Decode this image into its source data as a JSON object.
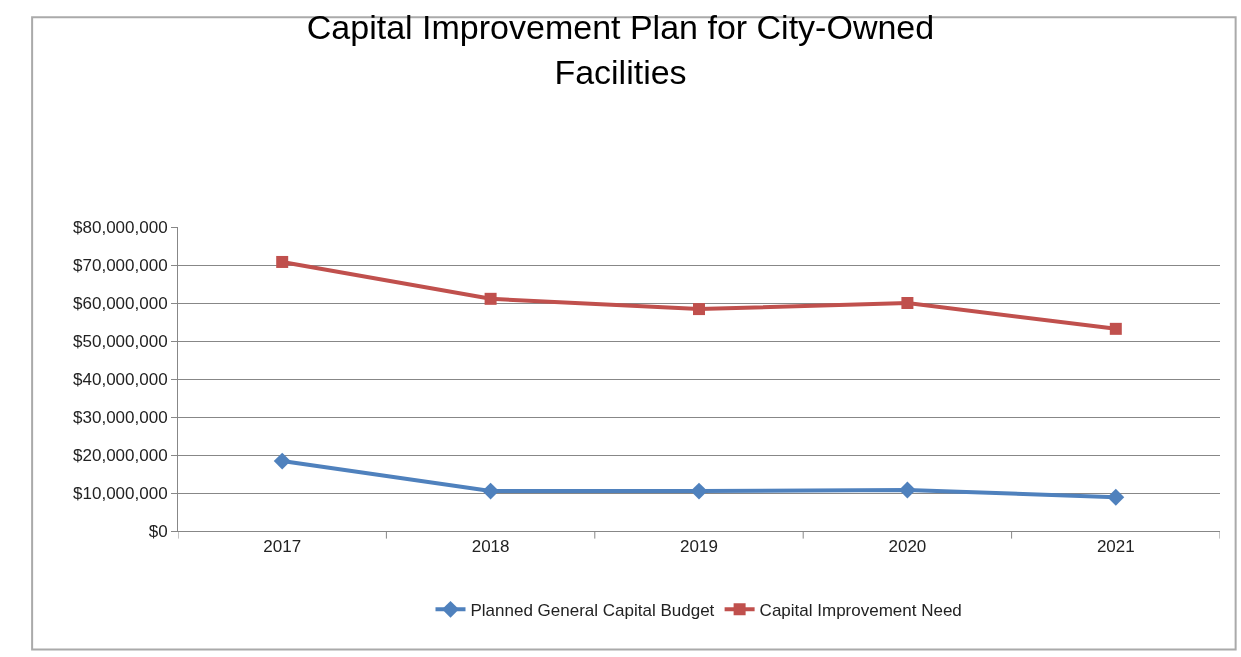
{
  "chart_data": {
    "type": "line",
    "title": "Capital Improvement Plan for City-Owned Facilities",
    "categories": [
      "2017",
      "2018",
      "2019",
      "2020",
      "2021"
    ],
    "series": [
      {
        "name": "Planned General Capital Budget",
        "color": "#4f81bd",
        "marker": "diamond",
        "values": [
          18400000,
          10500000,
          10500000,
          10800000,
          8900000
        ]
      },
      {
        "name": "Capital Improvement Need",
        "color": "#c0504d",
        "marker": "square",
        "values": [
          70800000,
          61100000,
          58400000,
          60000000,
          53200000
        ]
      }
    ],
    "ylim": [
      0,
      80000000
    ],
    "yticks": [
      {
        "value": 0,
        "label": "$0"
      },
      {
        "value": 10000000,
        "label": "$10,000,000"
      },
      {
        "value": 20000000,
        "label": "$20,000,000"
      },
      {
        "value": 30000000,
        "label": "$30,000,000"
      },
      {
        "value": 40000000,
        "label": "$40,000,000"
      },
      {
        "value": 50000000,
        "label": "$50,000,000"
      },
      {
        "value": 60000000,
        "label": "$60,000,000"
      },
      {
        "value": 70000000,
        "label": "$70,000,000"
      },
      {
        "value": 80000000,
        "label": "$80,000,000"
      }
    ],
    "grid": "y",
    "legend": "bottom",
    "line_style": "solid"
  }
}
